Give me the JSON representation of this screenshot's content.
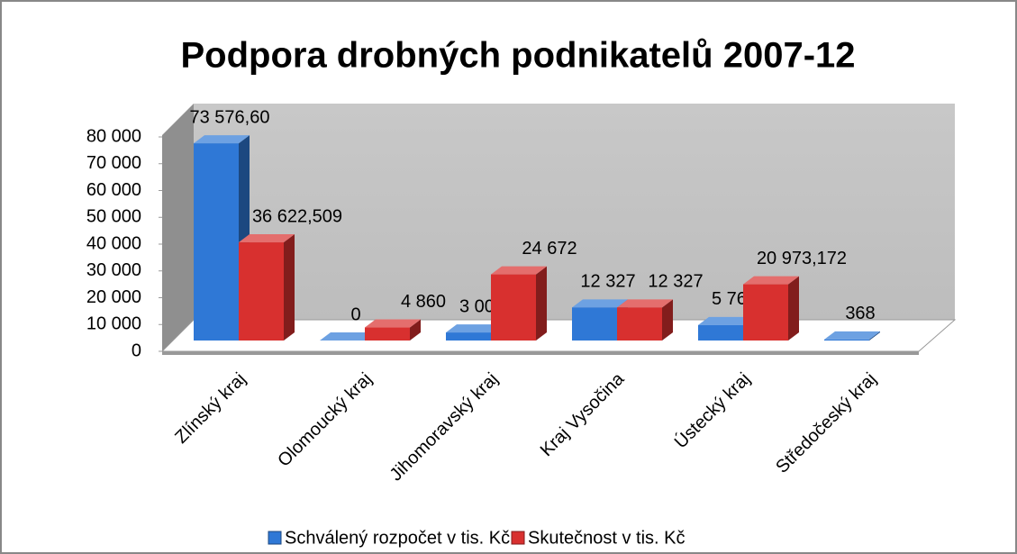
{
  "chart_data": {
    "type": "bar3d",
    "title": "Podpora drobných podnikatelů 2007-12",
    "categories": [
      "Zlínský kraj",
      "Olomoucký kraj",
      "Jihomoravský kraj",
      "Kraj Vysočina",
      "Ústecký kraj",
      "Středočeský kraj"
    ],
    "series": [
      {
        "name": "Schválený rozpočet v tis. Kč",
        "color": "#2f78d6",
        "values": [
          73576.6,
          0,
          3000,
          12327,
          5766,
          368
        ],
        "value_labels": [
          "73 576,60",
          "0",
          "3 000",
          "12 327",
          "5 766",
          "368"
        ]
      },
      {
        "name": "Skutečnost v tis. Kč",
        "color": "#d8302f",
        "values": [
          36622.509,
          4860,
          24672,
          12327,
          20973.172,
          null
        ],
        "value_labels": [
          "36 622,509",
          "4 860",
          "24 672",
          "12 327",
          "20 973,172",
          null
        ]
      }
    ],
    "ylim": [
      0,
      80000
    ],
    "yticks": [
      0,
      {
        "value": 10000,
        "label": "10 000"
      },
      {
        "value": 20000,
        "label": "20 000"
      },
      {
        "value": 30000,
        "label": "30 000"
      },
      {
        "value": 40000,
        "label": "40 000"
      },
      {
        "value": 50000,
        "label": "50 000"
      },
      {
        "value": 60000,
        "label": "60 000"
      },
      {
        "value": 70000,
        "label": "70 000"
      },
      {
        "value": 80000,
        "label": "80 000"
      }
    ],
    "legend": "bottom"
  }
}
